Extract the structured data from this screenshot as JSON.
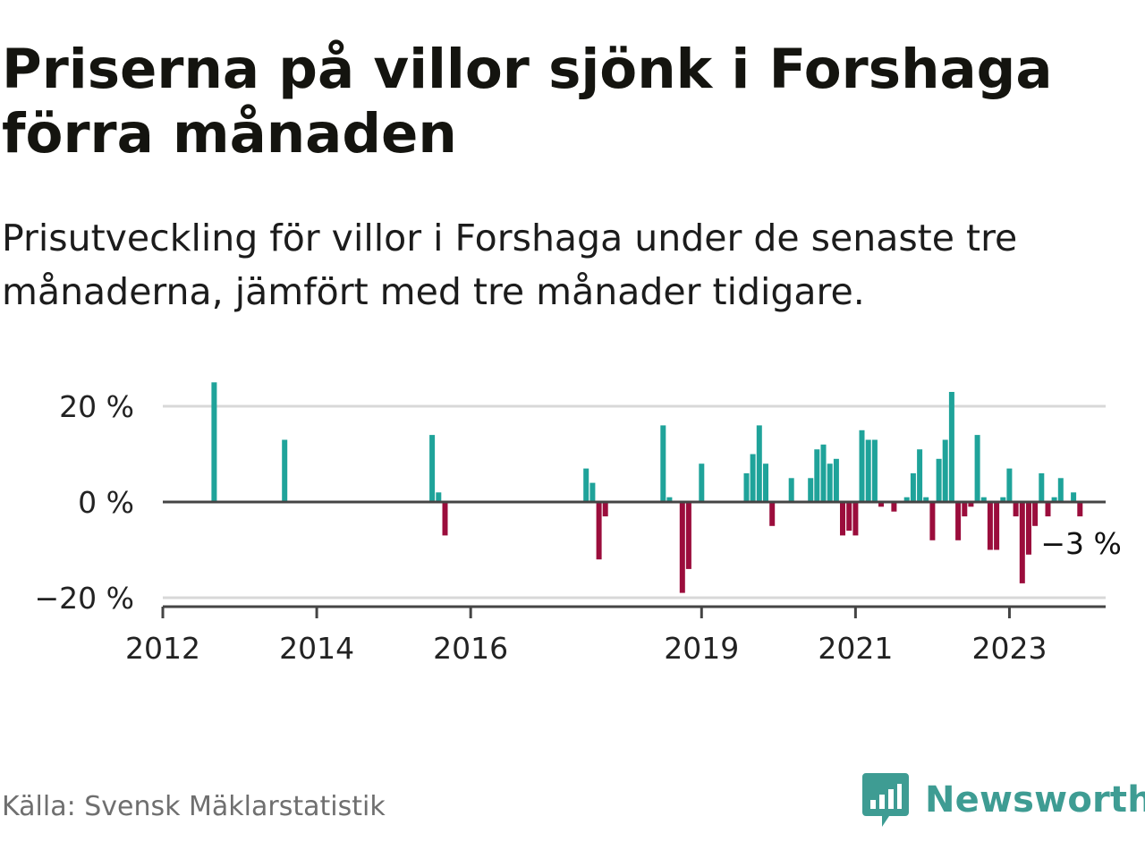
{
  "title": "Priserna på villor sjönk i Forshaga förra månaden",
  "subtitle": "Prisutveckling för villor i Forshaga under de senaste tre månaderna, jämfört med tre månader tidigare.",
  "source": "Källa: Svensk Mäklarstatistik",
  "brand": {
    "name": "Newsworthy",
    "icon": "newsworthy-logo-icon",
    "color": "#3e9c93"
  },
  "colors": {
    "positive": "#1fa39a",
    "negative": "#9b0d3c",
    "grid": "#d8d8d8",
    "zero_line": "#444444"
  },
  "chart_data": {
    "type": "bar",
    "ylim": [
      -20,
      20
    ],
    "yticks": [
      20,
      0,
      -20
    ],
    "ytick_labels": [
      "20 %",
      "0 %",
      "−20 %"
    ],
    "xticks": [
      2012,
      2014,
      2016,
      2019,
      2021,
      2023
    ],
    "xtick_labels": [
      "2012",
      "2014",
      "2016",
      "2019",
      "2021",
      "2023"
    ],
    "x_range": [
      "2012-01",
      "2024-04"
    ],
    "grid": true,
    "end_label": "−3 %",
    "series": [
      {
        "points": [
          {
            "x": "2012-09",
            "y": 25
          },
          {
            "x": "2013-08",
            "y": 13
          },
          {
            "x": "2015-07",
            "y": 14
          },
          {
            "x": "2015-08",
            "y": 2
          },
          {
            "x": "2015-09",
            "y": -7
          },
          {
            "x": "2017-07",
            "y": 7
          },
          {
            "x": "2017-08",
            "y": 4
          },
          {
            "x": "2017-09",
            "y": -12
          },
          {
            "x": "2017-10",
            "y": -3
          },
          {
            "x": "2018-07",
            "y": 16
          },
          {
            "x": "2018-08",
            "y": 1
          },
          {
            "x": "2018-10",
            "y": -19
          },
          {
            "x": "2018-11",
            "y": -14
          },
          {
            "x": "2019-01",
            "y": 8
          },
          {
            "x": "2019-08",
            "y": 6
          },
          {
            "x": "2019-09",
            "y": 10
          },
          {
            "x": "2019-10",
            "y": 16
          },
          {
            "x": "2019-11",
            "y": 8
          },
          {
            "x": "2019-12",
            "y": -5
          },
          {
            "x": "2020-03",
            "y": 5
          },
          {
            "x": "2020-06",
            "y": 5
          },
          {
            "x": "2020-07",
            "y": 11
          },
          {
            "x": "2020-08",
            "y": 12
          },
          {
            "x": "2020-09",
            "y": 8
          },
          {
            "x": "2020-10",
            "y": 9
          },
          {
            "x": "2020-11",
            "y": -7
          },
          {
            "x": "2020-12",
            "y": -6
          },
          {
            "x": "2021-01",
            "y": -7
          },
          {
            "x": "2021-02",
            "y": 15
          },
          {
            "x": "2021-03",
            "y": 13
          },
          {
            "x": "2021-04",
            "y": 13
          },
          {
            "x": "2021-05",
            "y": -1
          },
          {
            "x": "2021-07",
            "y": -2
          },
          {
            "x": "2021-09",
            "y": 1
          },
          {
            "x": "2021-10",
            "y": 6
          },
          {
            "x": "2021-11",
            "y": 11
          },
          {
            "x": "2021-12",
            "y": 1
          },
          {
            "x": "2022-01",
            "y": -8
          },
          {
            "x": "2022-02",
            "y": 9
          },
          {
            "x": "2022-03",
            "y": 13
          },
          {
            "x": "2022-04",
            "y": 23
          },
          {
            "x": "2022-05",
            "y": -8
          },
          {
            "x": "2022-06",
            "y": -3
          },
          {
            "x": "2022-07",
            "y": -1
          },
          {
            "x": "2022-08",
            "y": 14
          },
          {
            "x": "2022-09",
            "y": 1
          },
          {
            "x": "2022-10",
            "y": -10
          },
          {
            "x": "2022-11",
            "y": -10
          },
          {
            "x": "2022-12",
            "y": 1
          },
          {
            "x": "2023-01",
            "y": 7
          },
          {
            "x": "2023-02",
            "y": -3
          },
          {
            "x": "2023-03",
            "y": -17
          },
          {
            "x": "2023-04",
            "y": -11
          },
          {
            "x": "2023-05",
            "y": -5
          },
          {
            "x": "2023-06",
            "y": 6
          },
          {
            "x": "2023-07",
            "y": -3
          },
          {
            "x": "2023-08",
            "y": 1
          },
          {
            "x": "2023-09",
            "y": 5
          },
          {
            "x": "2023-11",
            "y": 2
          },
          {
            "x": "2023-12",
            "y": -3
          }
        ]
      }
    ]
  }
}
